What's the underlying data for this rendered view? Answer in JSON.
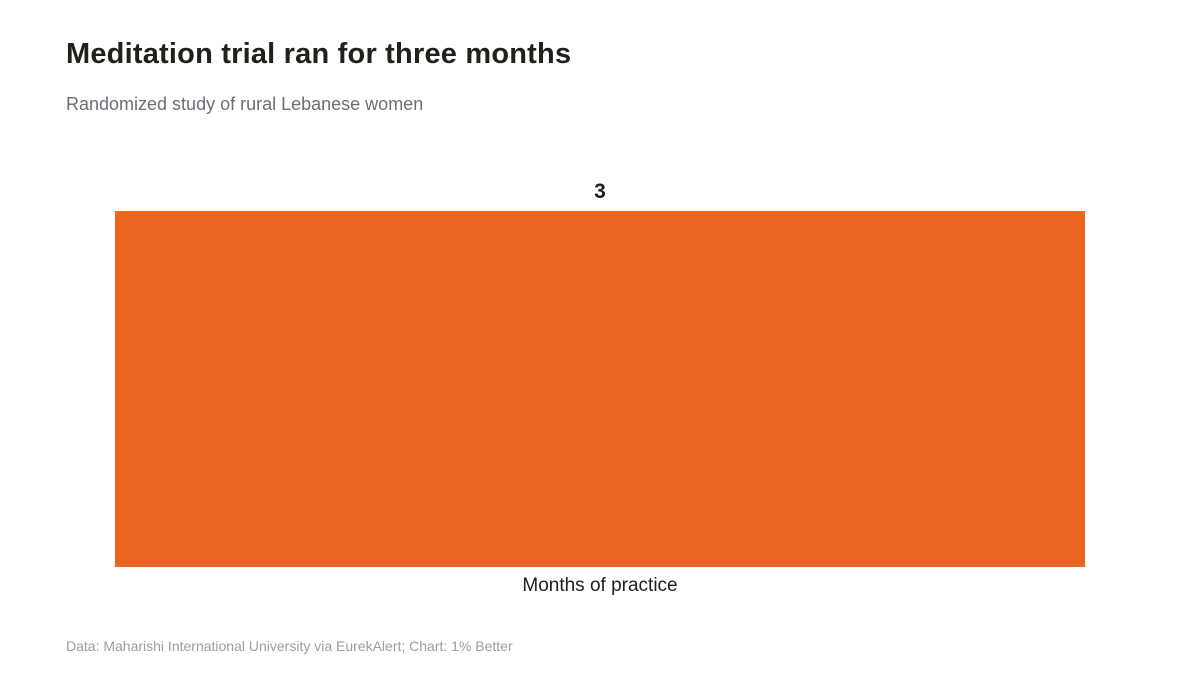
{
  "title": "Meditation trial ran for three months",
  "subtitle": "Randomized study of rural Lebanese women",
  "source": "Data: Maharishi International University via EurekAlert; Chart: 1% Better",
  "chart_data": {
    "type": "bar",
    "categories": [
      "Months of practice"
    ],
    "values": [
      3
    ],
    "data_labels": [
      "3"
    ],
    "title": "Meditation trial ran for three months",
    "subtitle": "Randomized study of rural Lebanese women",
    "xlabel": "",
    "ylabel": "",
    "ylim": [
      0,
      3
    ],
    "grid": false,
    "legend": "none",
    "bar_color": "#ec6520",
    "label_color": "#23201c"
  }
}
